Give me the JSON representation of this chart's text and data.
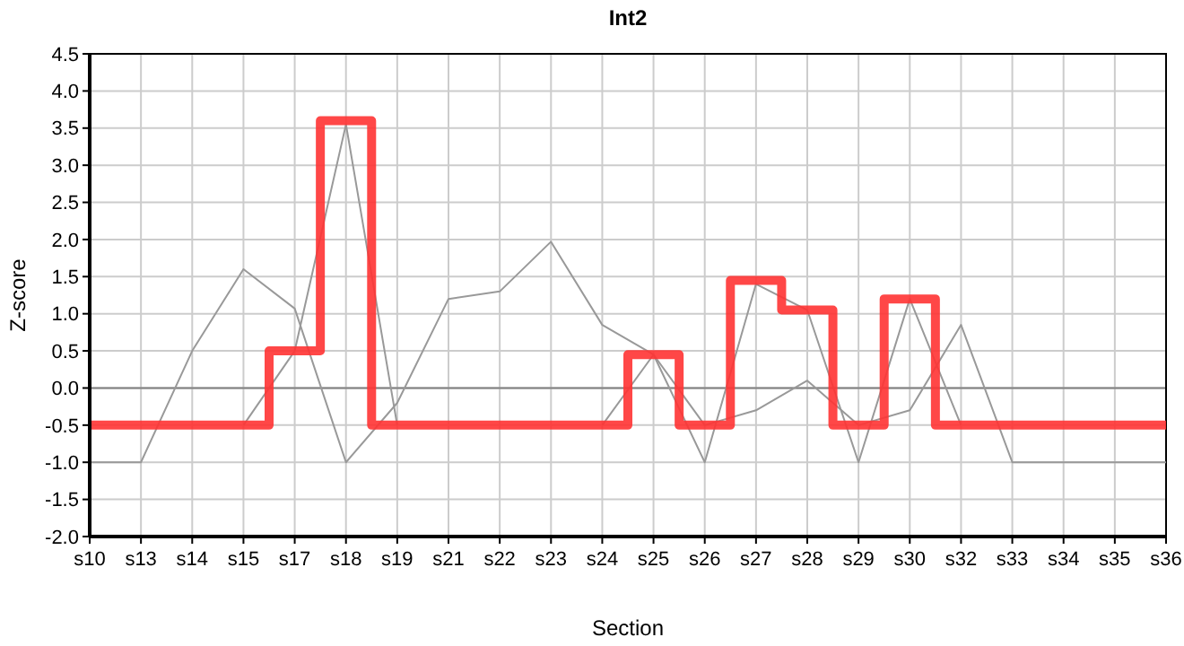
{
  "chart_data": {
    "type": "line",
    "title": "Int2",
    "xlabel": "Section",
    "ylabel": "Z-score",
    "categories": [
      "s10",
      "s13",
      "s14",
      "s15",
      "s17",
      "s18",
      "s19",
      "s21",
      "s22",
      "s23",
      "s24",
      "s25",
      "s26",
      "s27",
      "s28",
      "s29",
      "s30",
      "s32",
      "s33",
      "s34",
      "s35",
      "s36"
    ],
    "series": [
      {
        "color": "#999999",
        "values": [
          -1,
          -1,
          0.5,
          1.6,
          1.07,
          -1,
          -0.2,
          1.2,
          1.3,
          1.97,
          0.85,
          0.45,
          -0.5,
          -0.3,
          0.1,
          -0.5,
          -0.3,
          0.85,
          -1,
          -1,
          -1,
          -1
        ]
      },
      {
        "color": "#999999",
        "values": [
          null,
          null,
          null,
          -0.5,
          0.5,
          3.55,
          -0.5,
          null,
          null,
          null,
          -0.5,
          0.45,
          -1,
          1.4,
          1.05,
          -1,
          1.2,
          -0.5,
          null,
          null,
          null,
          null
        ]
      },
      {
        "type": "step",
        "color": "#ff3333",
        "values": [
          -0.5,
          -0.5,
          -0.5,
          -0.5,
          0.5,
          3.6,
          -0.5,
          -0.5,
          -0.5,
          -0.5,
          -0.5,
          0.45,
          -0.5,
          1.45,
          1.05,
          -0.5,
          1.2,
          -0.5,
          -0.5,
          -0.5,
          -0.5,
          -0.5
        ]
      }
    ],
    "ylim": [
      -2,
      4.5
    ],
    "yticks": [
      {
        "value": -2,
        "label": "-2.0"
      },
      {
        "value": -1.5,
        "label": "-1.5"
      },
      {
        "value": -1,
        "label": "-1.0"
      },
      {
        "value": -0.5,
        "label": "-0.5"
      },
      {
        "value": 0,
        "label": "0.0"
      },
      {
        "value": 0.5,
        "label": "0.5"
      },
      {
        "value": 1,
        "label": "1.0"
      },
      {
        "value": 1.5,
        "label": "1.5"
      },
      {
        "value": 2,
        "label": "2.0"
      },
      {
        "value": 2.5,
        "label": "2.5"
      },
      {
        "value": 3,
        "label": "3.0"
      },
      {
        "value": 3.5,
        "label": "3.5"
      },
      {
        "value": 4,
        "label": "4.0"
      },
      {
        "value": 4.5,
        "label": "4.5"
      }
    ],
    "ref_lines": [
      {
        "axis": "y",
        "value": 0,
        "color": "#808080"
      }
    ],
    "grid": true,
    "marker": "none",
    "line_style": "solid"
  }
}
